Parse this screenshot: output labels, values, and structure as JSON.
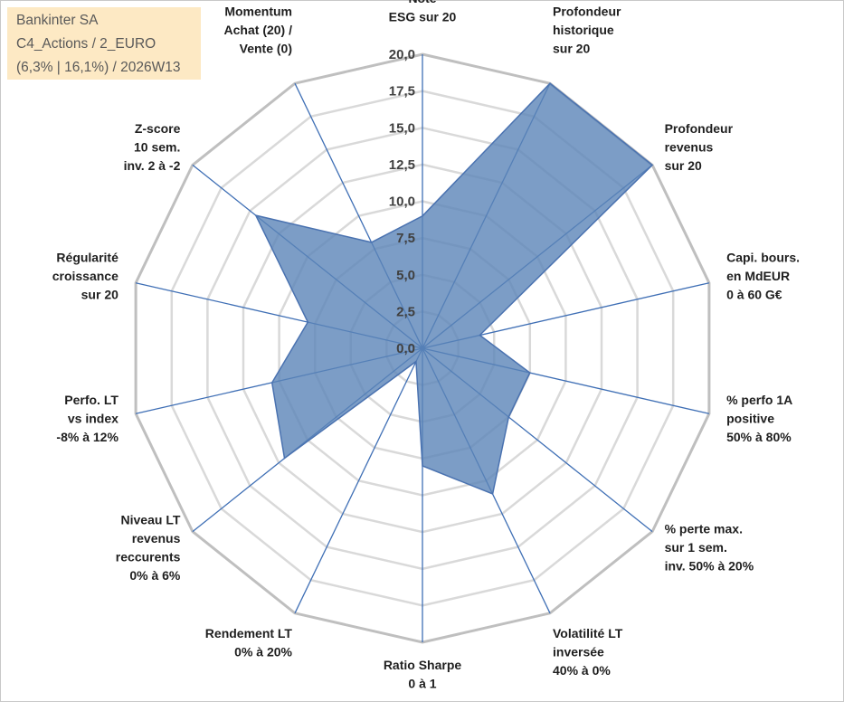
{
  "info": {
    "line1": "Bankinter SA",
    "line2": "C4_Actions / 2_EURO",
    "line3": "(6,3% | 16,1%) / 2026W13",
    "background": "#fde9c4"
  },
  "chart_data": {
    "type": "radar",
    "range": [
      0,
      20
    ],
    "ticks": [
      "0,0",
      "2,5",
      "5,0",
      "7,5",
      "10,0",
      "12,5",
      "15,0",
      "17,5",
      "20,0"
    ],
    "tick_values": [
      0,
      2.5,
      5,
      7.5,
      10,
      12.5,
      15,
      17.5,
      20
    ],
    "axes": [
      {
        "label": [
          "Note",
          "ESG sur 20"
        ],
        "value": 9
      },
      {
        "label": [
          "Profondeur",
          "historique",
          "sur 20"
        ],
        "value": 20
      },
      {
        "label": [
          "Profondeur",
          "revenus",
          "sur 20"
        ],
        "value": 20
      },
      {
        "label": [
          "Capi. bours.",
          "en MdEUR",
          "0 à 60 G€"
        ],
        "value": 4
      },
      {
        "label": [
          "% perfo 1A",
          "positive",
          "50% à 80%"
        ],
        "value": 7.5
      },
      {
        "label": [
          "% perte max.",
          "sur 1 sem.",
          "inv. 50% à 20%"
        ],
        "value": 7.5
      },
      {
        "label": [
          "Volatilité LT",
          "inversée",
          "40% à 0%"
        ],
        "value": 11
      },
      {
        "label": [
          "Ratio Sharpe",
          "0 à 1"
        ],
        "value": 8
      },
      {
        "label": [
          "Rendement LT",
          "0% à 20%"
        ],
        "value": 1
      },
      {
        "label": [
          "Niveau LT",
          "revenus",
          "reccurents",
          "0% à 6%"
        ],
        "value": 12
      },
      {
        "label": [
          "Perfo. LT",
          "vs index",
          "-8% à 12%"
        ],
        "value": 10.5
      },
      {
        "label": [
          "Régularité",
          "croissance",
          "sur 20"
        ],
        "value": 8
      },
      {
        "label": [
          "Z-score",
          "10 sem.",
          "inv. 2 à -2"
        ],
        "value": 14.5
      },
      {
        "label": [
          "Momentum",
          "Achat (20) /",
          "Vente (0)"
        ],
        "value": 8
      }
    ],
    "colors": {
      "fill": "#5b84b8",
      "stroke": "#4a72b0",
      "spokes": "#3f6fb5",
      "grid_outer": "#bfbfbf",
      "grid_inner": "#d9d9d9"
    }
  }
}
